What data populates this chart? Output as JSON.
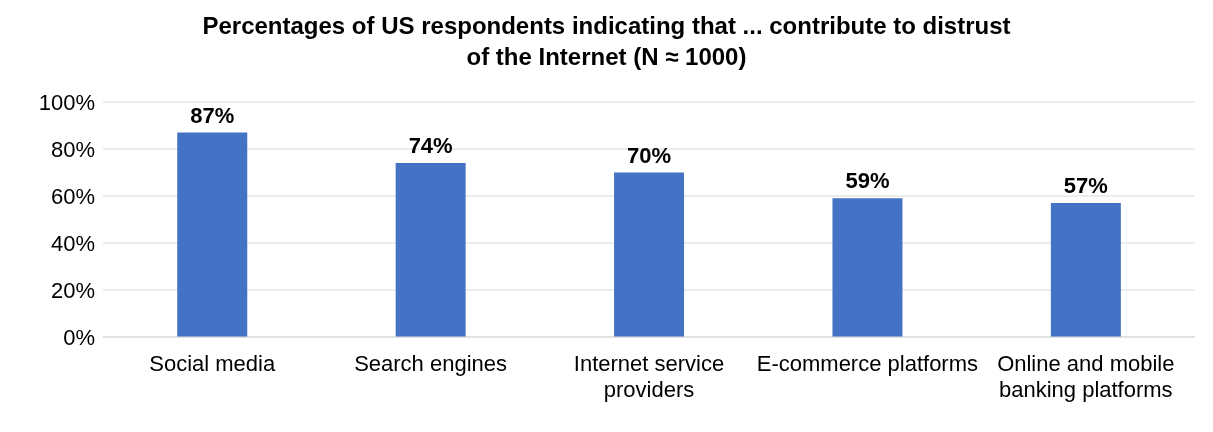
{
  "chart_data": {
    "type": "bar",
    "title": "Percentages of US respondents indicating that ... contribute to distrust of the Internet (N ≈ 1000)",
    "categories": [
      "Social media",
      "Search engines",
      "Internet service providers",
      "E-commerce platforms",
      "Online and mobile banking platforms"
    ],
    "values": [
      87,
      74,
      70,
      59,
      57
    ],
    "value_labels": [
      "87%",
      "74%",
      "70%",
      "59%",
      "57%"
    ],
    "color": "#4472c4",
    "ylim": [
      0,
      100
    ],
    "yticks": [
      {
        "value": 0,
        "label": "0%"
      },
      {
        "value": 20,
        "label": "20%"
      },
      {
        "value": 40,
        "label": "40%"
      },
      {
        "value": 60,
        "label": "60%"
      },
      {
        "value": 80,
        "label": "80%"
      },
      {
        "value": 100,
        "label": "100%"
      }
    ],
    "grid": "y",
    "legend": false
  }
}
